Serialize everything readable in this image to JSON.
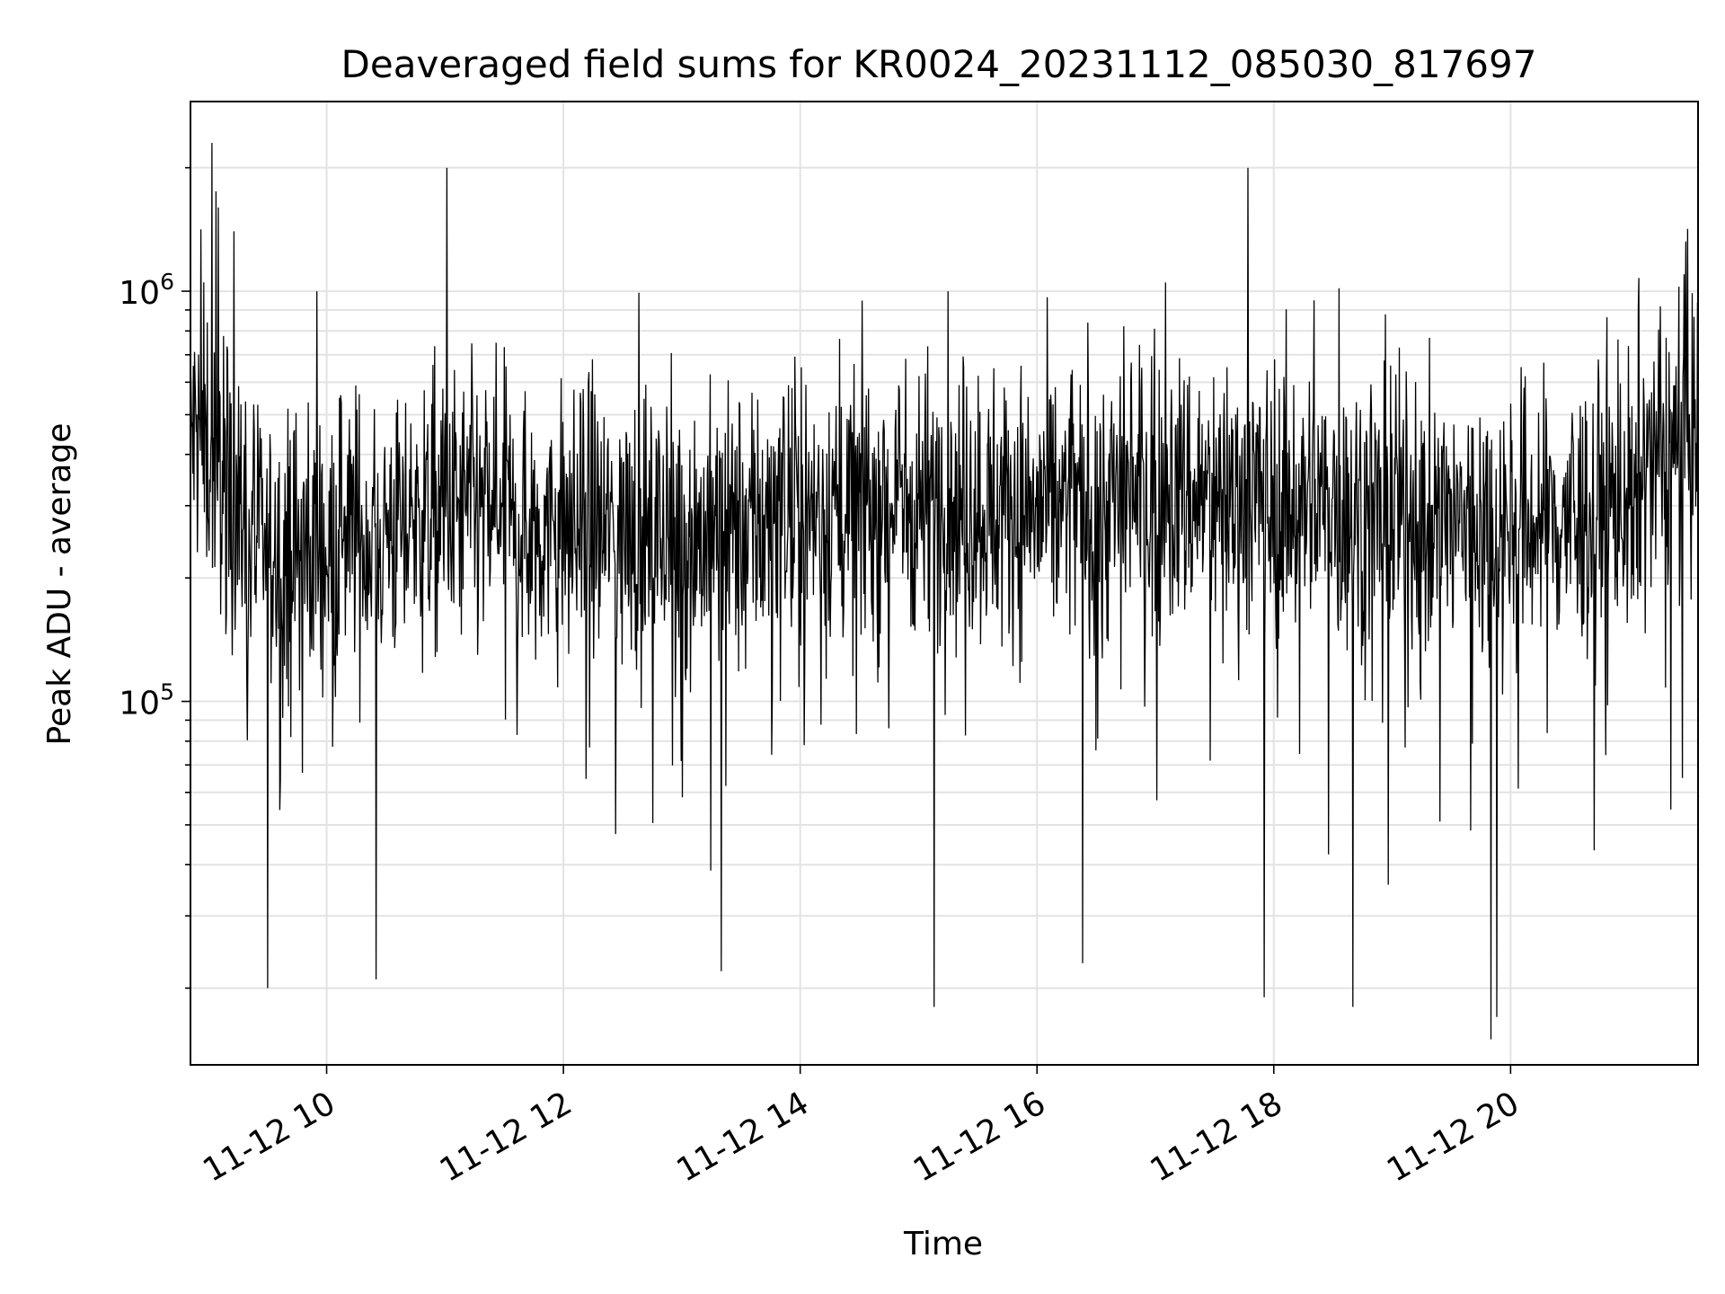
{
  "chart_data": {
    "type": "line",
    "title": "Deaveraged field sums for KR0024_20231112_085030_817697",
    "xlabel": "Time",
    "ylabel": "Peak ADU - average",
    "x_scale": "time",
    "y_scale": "log",
    "xlim": [
      "2023-11-12T08:51:00",
      "2023-11-12T21:35:00"
    ],
    "ylim": [
      13000,
      2900000
    ],
    "x_ticks": [
      {
        "value": "2023-11-12T10:00:00",
        "label": "11-12 10"
      },
      {
        "value": "2023-11-12T12:00:00",
        "label": "11-12 12"
      },
      {
        "value": "2023-11-12T14:00:00",
        "label": "11-12 14"
      },
      {
        "value": "2023-11-12T16:00:00",
        "label": "11-12 16"
      },
      {
        "value": "2023-11-12T18:00:00",
        "label": "11-12 18"
      },
      {
        "value": "2023-11-12T20:00:00",
        "label": "11-12 20"
      }
    ],
    "y_ticks": [
      {
        "value": 100000,
        "base": "10",
        "exp": "5"
      },
      {
        "value": 1000000,
        "base": "10",
        "exp": "6"
      }
    ],
    "grid": true,
    "line_color": "#000000",
    "series": [
      {
        "x": [
          "2023-11-12T08:51:00",
          "2023-11-12T09:00:00",
          "2023-11-12T09:10:00",
          "2023-11-12T09:20:00",
          "2023-11-12T09:30:00",
          "2023-11-12T09:45:00",
          "2023-11-12T10:00:00",
          "2023-11-12T10:20:00",
          "2023-11-12T10:40:00",
          "2023-11-12T11:00:00",
          "2023-11-12T11:20:00",
          "2023-11-12T11:40:00",
          "2023-11-12T12:00:00",
          "2023-11-12T12:30:00",
          "2023-11-12T13:00:00",
          "2023-11-12T13:30:00",
          "2023-11-12T14:00:00",
          "2023-11-12T14:30:00",
          "2023-11-12T15:00:00",
          "2023-11-12T15:30:00",
          "2023-11-12T16:00:00",
          "2023-11-12T16:30:00",
          "2023-11-12T17:00:00",
          "2023-11-12T17:30:00",
          "2023-11-12T18:00:00",
          "2023-11-12T18:30:00",
          "2023-11-12T19:00:00",
          "2023-11-12T19:30:00",
          "2023-11-12T20:00:00",
          "2023-11-12T20:30:00",
          "2023-11-12T21:00:00",
          "2023-11-12T21:15:00",
          "2023-11-12T21:35:00"
        ],
        "y": [
          450000,
          420000,
          330000,
          250000,
          220000,
          230000,
          240000,
          250000,
          270000,
          290000,
          280000,
          270000,
          260000,
          260000,
          250000,
          260000,
          280000,
          300000,
          310000,
          300000,
          290000,
          300000,
          320000,
          320000,
          310000,
          300000,
          280000,
          270000,
          270000,
          280000,
          300000,
          380000,
          450000
        ],
        "spikes_high": [
          {
            "x": "2023-11-12T09:02:00",
            "y": 2300000
          },
          {
            "x": "2023-11-12T09:05:00",
            "y": 1600000
          },
          {
            "x": "2023-11-12T09:13:00",
            "y": 1400000
          },
          {
            "x": "2023-11-12T09:55:00",
            "y": 1000000
          },
          {
            "x": "2023-11-12T11:01:00",
            "y": 2000000
          },
          {
            "x": "2023-11-12T15:15:00",
            "y": 1000000
          },
          {
            "x": "2023-11-12T17:05:00",
            "y": 1050000
          },
          {
            "x": "2023-11-12T17:47:00",
            "y": 2000000
          },
          {
            "x": "2023-11-12T21:28:00",
            "y": 1100000
          }
        ],
        "spikes_low": [
          {
            "x": "2023-11-12T09:30:00",
            "y": 20000
          },
          {
            "x": "2023-11-12T10:25:00",
            "y": 21000
          },
          {
            "x": "2023-11-12T13:20:00",
            "y": 22000
          },
          {
            "x": "2023-11-12T15:08:00",
            "y": 18000
          },
          {
            "x": "2023-11-12T16:23:00",
            "y": 23000
          },
          {
            "x": "2023-11-12T17:55:00",
            "y": 19000
          },
          {
            "x": "2023-11-12T18:40:00",
            "y": 18000
          },
          {
            "x": "2023-11-12T19:50:00",
            "y": 15000
          },
          {
            "x": "2023-11-12T19:53:00",
            "y": 17000
          }
        ]
      }
    ]
  }
}
